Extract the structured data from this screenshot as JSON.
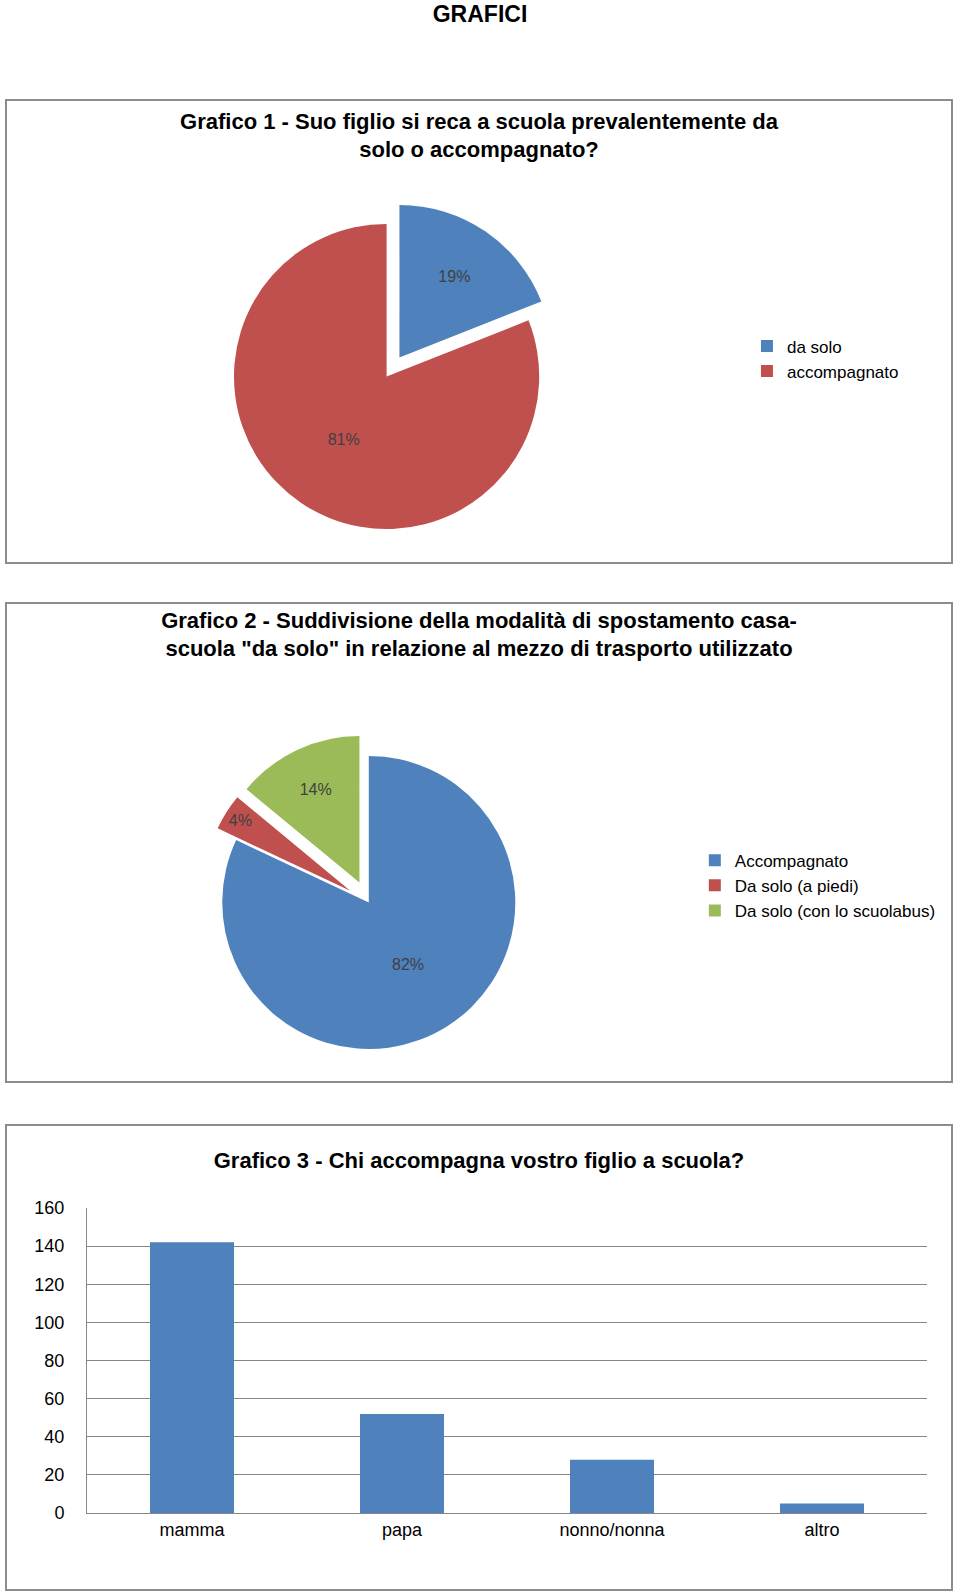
{
  "heading": "GRAFICI",
  "chart_data": [
    {
      "type": "pie",
      "title": "Grafico 1 - Suo figlio si reca a scuola prevalentemente da\nsolo o accompagnato?",
      "categories": [
        "da solo",
        "accompagnato"
      ],
      "values": [
        19,
        81
      ],
      "value_labels": [
        "19%",
        "81%"
      ],
      "colors": [
        "#4f81bd",
        "#c0504d"
      ],
      "data_labels": true,
      "legend": "right"
    },
    {
      "type": "pie",
      "title": "Grafico 2 - Suddivisione della modalità di spostamento casa-\nscuola \"da solo\" in relazione al mezzo di trasporto utilizzato",
      "categories": [
        "Accompagnato",
        "Da solo (a piedi)",
        "Da solo (con lo scuolabus)"
      ],
      "values": [
        82,
        4,
        14
      ],
      "value_labels": [
        "82%",
        "4%",
        "14%"
      ],
      "colors": [
        "#4f81bd",
        "#c0504d",
        "#9bbb59"
      ],
      "data_labels": true,
      "legend": "right"
    },
    {
      "type": "bar",
      "title": "Grafico 3 - Chi accompagna vostro figlio a scuola?",
      "categories": [
        "mamma",
        "papa",
        "nonno/nonna",
        "altro"
      ],
      "values": [
        142,
        52,
        28,
        5
      ],
      "color": "#4f81bd",
      "ylim": [
        0,
        160
      ],
      "yticks": [
        0,
        20,
        40,
        60,
        80,
        100,
        120,
        140,
        160
      ],
      "grid": true
    }
  ]
}
